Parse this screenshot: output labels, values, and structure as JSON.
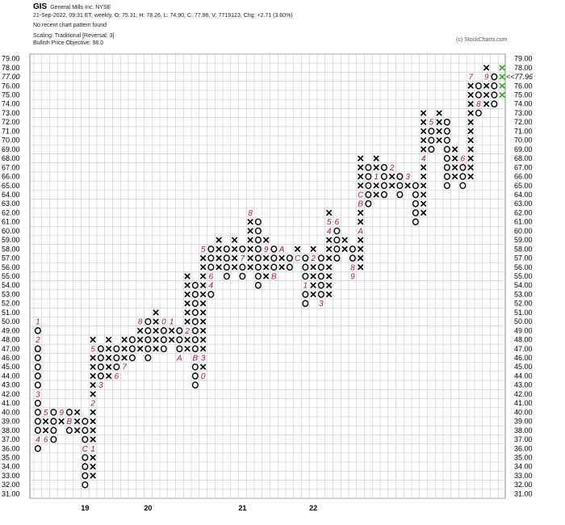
{
  "header": {
    "symbol": "GIS",
    "company": "General Mills Inc.  NYSE",
    "ohlc_line": "21-Sep-2022, 09:31 ET, weekly, O: 75.31, H: 78.26, L: 74.90, C: 77.96, V: 7719123, Chg: +2.71 (3.60%)",
    "pattern": "No recent chart pattern found",
    "scaling": "Scaling: Traditional [Reversal: 3]",
    "objective": "Bullish Price Objective: 98.0",
    "copyright": "(c) StockCharts.com"
  },
  "colors": {
    "x_mark": "#000000",
    "o_mark": "#000000",
    "month_marker": "#b0104a",
    "current_column": "#22aa22",
    "current_price": "#b0104a",
    "grid": "#c8c8c8"
  },
  "chart_data": {
    "type": "point-and-figure",
    "box_size": 1,
    "reversal": 3,
    "ylim": [
      31,
      79
    ],
    "y_ticks": [
      "79.00",
      "78.00",
      "77.00",
      "76.00",
      "75.00",
      "74.00",
      "73.00",
      "72.00",
      "71.00",
      "70.00",
      "69.00",
      "68.00",
      "67.00",
      "66.00",
      "65.00",
      "64.00",
      "63.00",
      "62.00",
      "61.00",
      "60.00",
      "59.00",
      "58.00",
      "57.00",
      "56.00",
      "55.00",
      "54.00",
      "53.00",
      "52.00",
      "51.00",
      "50.00",
      "49.00",
      "48.00",
      "47.00",
      "46.00",
      "45.00",
      "44.00",
      "43.00",
      "42.00",
      "41.00",
      "40.00",
      "39.00",
      "38.00",
      "37.00",
      "36.00",
      "35.00",
      "34.00",
      "33.00",
      "32.00",
      "31.00"
    ],
    "right_ticks": [
      "79.00",
      "78.00",
      "76.00",
      "75.00",
      "74.00",
      "73.00",
      "72.00",
      "71.00",
      "70.00",
      "69.00",
      "68.00",
      "67.00",
      "66.00",
      "65.00",
      "64.00",
      "63.00",
      "62.00",
      "61.00",
      "60.00",
      "59.00",
      "58.00",
      "57.00",
      "56.00",
      "55.00",
      "54.00",
      "53.00",
      "52.00",
      "51.00",
      "50.00",
      "49.00",
      "48.00",
      "47.00",
      "46.00",
      "45.00",
      "44.00",
      "43.00",
      "42.00",
      "41.00",
      "40.00",
      "39.00",
      "38.00",
      "37.00",
      "36.00",
      "35.00",
      "34.00",
      "33.00",
      "32.00",
      "31.00"
    ],
    "left_highlight_tick": "77.00",
    "current_price_label": "<<77.96",
    "year_labels": [
      {
        "text": "19",
        "column": 6
      },
      {
        "text": "20",
        "column": 14
      },
      {
        "text": "21",
        "column": 26
      },
      {
        "text": "22",
        "column": 35
      }
    ],
    "columns": [
      {
        "type": "O",
        "high": 50,
        "low": 36,
        "markers": {
          "50": "1",
          "48": "2",
          "42": "3",
          "37": "4"
        }
      },
      {
        "type": "X",
        "high": 40,
        "low": 37,
        "markers": {
          "41": "7",
          "40": "5",
          "37": "6"
        }
      },
      {
        "type": "O",
        "high": 40,
        "low": 37,
        "markers": {}
      },
      {
        "type": "X",
        "high": 40,
        "low": 39,
        "markers": {
          "40": "9"
        }
      },
      {
        "type": "O",
        "high": 40,
        "low": 38,
        "markers": {
          "39": "B"
        }
      },
      {
        "type": "X",
        "high": 40,
        "low": 38,
        "markers": {}
      },
      {
        "type": "O",
        "high": 39,
        "low": 32,
        "markers": {
          "36": "C"
        }
      },
      {
        "type": "X",
        "high": 48,
        "low": 33,
        "markers": {
          "36": "1",
          "41": "2",
          "47": "5"
        }
      },
      {
        "type": "O",
        "high": 47,
        "low": 43,
        "markers": {
          "43": "3"
        }
      },
      {
        "type": "X",
        "high": 48,
        "low": 44,
        "markers": {}
      },
      {
        "type": "O",
        "high": 47,
        "low": 44,
        "markers": {
          "44": "6"
        }
      },
      {
        "type": "X",
        "high": 48,
        "low": 45,
        "markers": {
          "45": "7"
        }
      },
      {
        "type": "O",
        "high": 48,
        "low": 46,
        "markers": {}
      },
      {
        "type": "X",
        "high": 50,
        "low": 47,
        "markers": {
          "50": "8"
        }
      },
      {
        "type": "O",
        "high": 50,
        "low": 46,
        "markers": {}
      },
      {
        "type": "X",
        "high": 51,
        "low": 47,
        "markers": {}
      },
      {
        "type": "O",
        "high": 50,
        "low": 47,
        "markers": {
          "50": "0"
        }
      },
      {
        "type": "X",
        "high": 50,
        "low": 48,
        "markers": {
          "50": "1"
        }
      },
      {
        "type": "O",
        "high": 49,
        "low": 46,
        "markers": {
          "46": "A"
        }
      },
      {
        "type": "X",
        "high": 55,
        "low": 47,
        "markers": {
          "49": "2"
        }
      },
      {
        "type": "O",
        "high": 54,
        "low": 43,
        "markers": {
          "46": "B"
        }
      },
      {
        "type": "X",
        "high": 58,
        "low": 44,
        "markers": {
          "58": "5",
          "46": "3",
          "44": "0"
        }
      },
      {
        "type": "O",
        "high": 58,
        "low": 53,
        "markers": {
          "54": "4",
          "55": "6"
        }
      },
      {
        "type": "X",
        "high": 59,
        "low": 56,
        "markers": {}
      },
      {
        "type": "O",
        "high": 58,
        "low": 55,
        "markers": {}
      },
      {
        "type": "X",
        "high": 59,
        "low": 56,
        "markers": {}
      },
      {
        "type": "O",
        "high": 58,
        "low": 55,
        "markers": {
          "57": "7"
        }
      },
      {
        "type": "X",
        "high": 62,
        "low": 56,
        "markers": {
          "62": "8"
        }
      },
      {
        "type": "O",
        "high": 61,
        "low": 54,
        "markers": {}
      },
      {
        "type": "X",
        "high": 59,
        "low": 55,
        "markers": {
          "58": "9"
        }
      },
      {
        "type": "O",
        "high": 58,
        "low": 55,
        "markers": {
          "55": "B"
        }
      },
      {
        "type": "X",
        "high": 58,
        "low": 56,
        "markers": {
          "58": "A"
        }
      },
      {
        "type": "O",
        "high": 57,
        "low": 56,
        "markers": {}
      },
      {
        "type": "X",
        "high": 58,
        "low": 57,
        "markers": {
          "57": "C"
        }
      },
      {
        "type": "O",
        "high": 57,
        "low": 52,
        "markers": {
          "54": "1"
        }
      },
      {
        "type": "X",
        "high": 58,
        "low": 53,
        "markers": {
          "57": "2"
        }
      },
      {
        "type": "O",
        "high": 57,
        "low": 52,
        "markers": {
          "52": "3"
        }
      },
      {
        "type": "X",
        "high": 62,
        "low": 53,
        "markers": {
          "61": "5",
          "60": "4"
        }
      },
      {
        "type": "O",
        "high": 61,
        "low": 57,
        "markers": {
          "61": "6"
        }
      },
      {
        "type": "X",
        "high": 59,
        "low": 58,
        "markers": {}
      },
      {
        "type": "O",
        "high": 58,
        "low": 55,
        "markers": {
          "56": "8",
          "55": "9"
        }
      },
      {
        "type": "X",
        "high": 68,
        "low": 56,
        "markers": {
          "64": "C",
          "63": "B",
          "60": "A"
        }
      },
      {
        "type": "O",
        "high": 67,
        "low": 63,
        "markers": {}
      },
      {
        "type": "X",
        "high": 68,
        "low": 64,
        "markers": {
          "66": "1"
        }
      },
      {
        "type": "O",
        "high": 67,
        "low": 64,
        "markers": {}
      },
      {
        "type": "X",
        "high": 67,
        "low": 65,
        "markers": {
          "67": "2"
        }
      },
      {
        "type": "O",
        "high": 66,
        "low": 64,
        "markers": {}
      },
      {
        "type": "X",
        "high": 66,
        "low": 65,
        "markers": {
          "66": "3"
        }
      },
      {
        "type": "O",
        "high": 65,
        "low": 61,
        "markers": {}
      },
      {
        "type": "X",
        "high": 73,
        "low": 62,
        "markers": {
          "68": "4"
        }
      },
      {
        "type": "O",
        "high": 72,
        "low": 69,
        "markers": {
          "72": "5"
        }
      },
      {
        "type": "X",
        "high": 73,
        "low": 70,
        "markers": {}
      },
      {
        "type": "O",
        "high": 72,
        "low": 65,
        "markers": {}
      },
      {
        "type": "X",
        "high": 69,
        "low": 66,
        "markers": {}
      },
      {
        "type": "O",
        "high": 68,
        "low": 65,
        "markers": {
          "68": "6"
        }
      },
      {
        "type": "X",
        "high": 77,
        "low": 66,
        "markers": {
          "77": "7"
        }
      },
      {
        "type": "O",
        "high": 76,
        "low": 73,
        "markers": {
          "74": "8"
        }
      },
      {
        "type": "X",
        "high": 78,
        "low": 74,
        "markers": {
          "77": "9"
        }
      },
      {
        "type": "O",
        "high": 77,
        "low": 74,
        "markers": {}
      },
      {
        "type": "X",
        "high": 78,
        "low": 75,
        "markers": {},
        "current": true
      }
    ]
  }
}
